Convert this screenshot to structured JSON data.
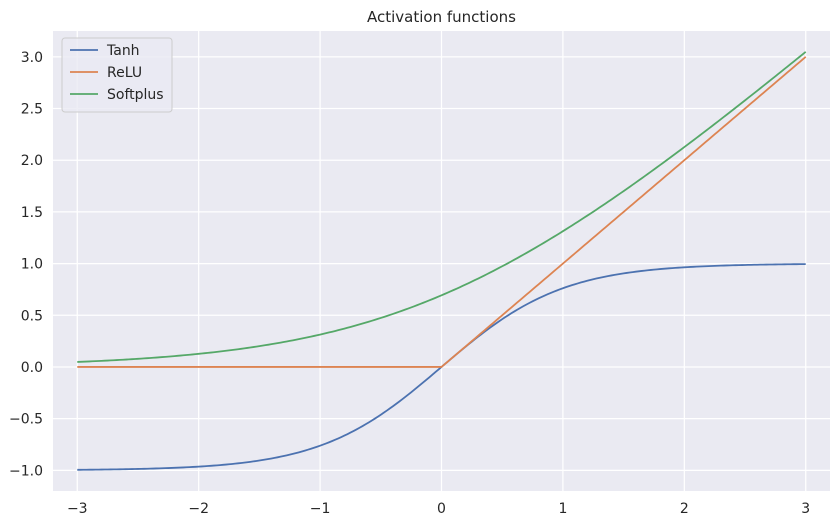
{
  "chart_data": {
    "type": "line",
    "title": "Activation functions",
    "xlabel": "",
    "ylabel": "",
    "xlim": [
      -3.2,
      3.2
    ],
    "ylim": [
      -1.2,
      3.25
    ],
    "xticks": [
      -3,
      -2,
      -1,
      0,
      1,
      2,
      3
    ],
    "xtick_labels": [
      "−3",
      "−2",
      "−1",
      "0",
      "1",
      "2",
      "3"
    ],
    "yticks": [
      -1.0,
      -0.5,
      0.0,
      0.5,
      1.0,
      1.5,
      2.0,
      2.5,
      3.0
    ],
    "ytick_labels": [
      "−1.0",
      "−0.5",
      "0.0",
      "0.5",
      "1.0",
      "1.5",
      "2.0",
      "2.5",
      "3.0"
    ],
    "grid": true,
    "legend_position": "top-left",
    "x": [
      -3.0,
      -2.5,
      -2.0,
      -1.5,
      -1.0,
      -0.5,
      0.0,
      0.5,
      1.0,
      1.5,
      2.0,
      2.5,
      3.0
    ],
    "series": [
      {
        "name": "Tanh",
        "color": "#4c72b0",
        "values": [
          -0.995,
          -0.987,
          -0.964,
          -0.905,
          -0.762,
          -0.462,
          0.0,
          0.462,
          0.762,
          0.905,
          0.964,
          0.987,
          0.995
        ]
      },
      {
        "name": "ReLU",
        "color": "#dd8452",
        "values": [
          0.0,
          0.0,
          0.0,
          0.0,
          0.0,
          0.0,
          0.0,
          0.5,
          1.0,
          1.5,
          2.0,
          2.5,
          3.0
        ]
      },
      {
        "name": "Softplus",
        "color": "#55a868",
        "values": [
          0.049,
          0.079,
          0.127,
          0.201,
          0.313,
          0.474,
          0.693,
          0.974,
          1.313,
          1.701,
          2.127,
          2.579,
          3.049
        ]
      }
    ]
  },
  "colors": {
    "plot_background": "#eaeaf2",
    "grid": "#ffffff",
    "text": "#262626"
  }
}
